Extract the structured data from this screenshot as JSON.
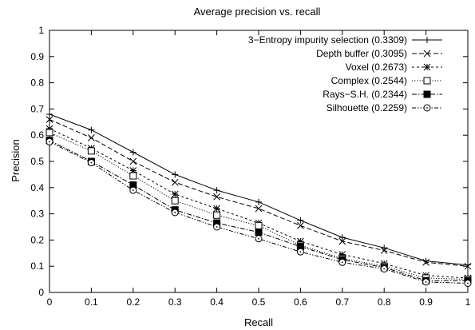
{
  "chart_data": {
    "type": "line",
    "title": "Average precision vs. recall",
    "xlabel": "Recall",
    "ylabel": "Precision",
    "xlim": [
      0,
      1
    ],
    "ylim": [
      0,
      1
    ],
    "x": [
      0,
      0.1,
      0.2,
      0.3,
      0.4,
      0.5,
      0.6,
      0.7,
      0.8,
      0.9,
      1
    ],
    "xticks": [
      "0",
      "0.1",
      "0.2",
      "0.3",
      "0.4",
      "0.5",
      "0.6",
      "0.7",
      "0.8",
      "0.9",
      "1"
    ],
    "yticks": [
      "0",
      "0.1",
      "0.2",
      "0.3",
      "0.4",
      "0.5",
      "0.6",
      "0.7",
      "0.8",
      "0.9",
      "1"
    ],
    "grid": false,
    "legend_position": "top-right",
    "series": [
      {
        "name": "3−Entropy impurity selection (0.3309)",
        "marker": "plus",
        "dash": "solid",
        "values": [
          0.68,
          0.62,
          0.535,
          0.45,
          0.39,
          0.345,
          0.275,
          0.21,
          0.17,
          0.12,
          0.105
        ]
      },
      {
        "name": "Depth buffer (0.3095)",
        "marker": "x",
        "dash": "dashed",
        "values": [
          0.66,
          0.59,
          0.5,
          0.42,
          0.365,
          0.32,
          0.255,
          0.195,
          0.16,
          0.115,
          0.1
        ]
      },
      {
        "name": "Voxel (0.2673)",
        "marker": "star",
        "dash": "fine-dashed",
        "values": [
          0.625,
          0.55,
          0.465,
          0.375,
          0.32,
          0.265,
          0.195,
          0.145,
          0.11,
          0.065,
          0.055
        ]
      },
      {
        "name": "Complex (0.2544)",
        "marker": "open-square",
        "dash": "dotted",
        "values": [
          0.61,
          0.54,
          0.445,
          0.35,
          0.295,
          0.255,
          0.18,
          0.13,
          0.1,
          0.055,
          0.05
        ]
      },
      {
        "name": "Rays−S.H. (0.2344)",
        "marker": "filled-square",
        "dash": "dash-dot",
        "values": [
          0.58,
          0.5,
          0.41,
          0.315,
          0.265,
          0.23,
          0.175,
          0.125,
          0.095,
          0.045,
          0.045
        ]
      },
      {
        "name": "Silhouette (0.2259)",
        "marker": "open-circle",
        "dash": "dash-dot-dot",
        "values": [
          0.575,
          0.495,
          0.39,
          0.305,
          0.25,
          0.205,
          0.155,
          0.115,
          0.09,
          0.04,
          0.035
        ]
      }
    ]
  }
}
